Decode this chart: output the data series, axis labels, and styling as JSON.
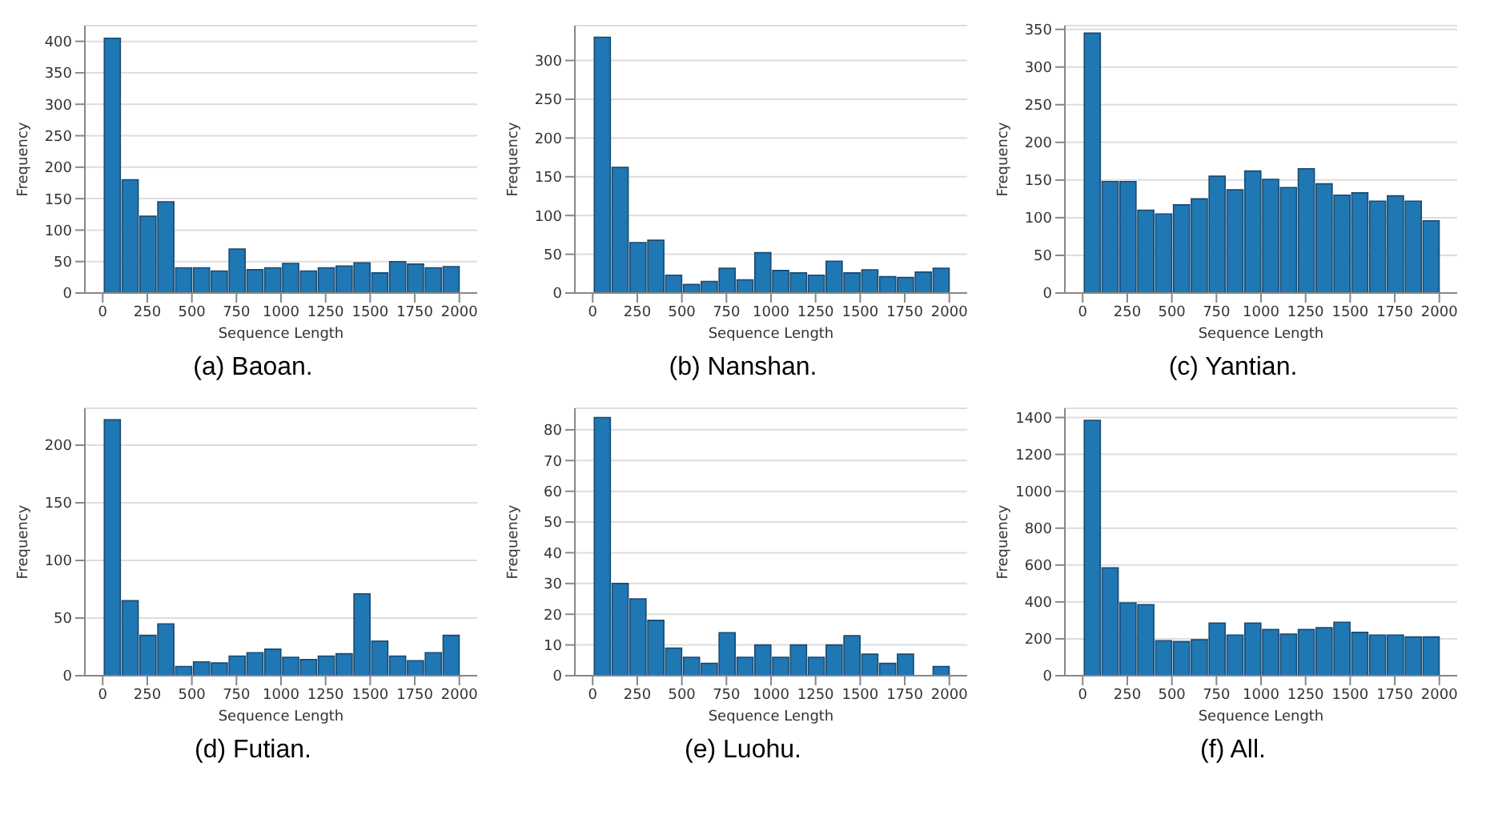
{
  "chart_data": [
    {
      "type": "histogram",
      "title": "(a) Baoan.",
      "xlabel": "Sequence Length",
      "ylabel": "Frequency",
      "color": "#1f77b4",
      "grid": "y",
      "bins": [
        0,
        100,
        200,
        300,
        400,
        500,
        600,
        700,
        800,
        900,
        1000,
        1100,
        1200,
        1300,
        1400,
        1500,
        1600,
        1700,
        1800,
        1900,
        2000
      ],
      "values": [
        405,
        180,
        122,
        145,
        40,
        40,
        35,
        70,
        37,
        40,
        47,
        35,
        40,
        43,
        48,
        32,
        50,
        46,
        40,
        42
      ],
      "xlim": [
        -100,
        2100
      ],
      "xticks": [
        0,
        250,
        500,
        750,
        1000,
        1250,
        1500,
        1750,
        2000
      ],
      "ylim": [
        0,
        425
      ],
      "yticks": [
        0,
        50,
        100,
        150,
        200,
        250,
        300,
        350,
        400
      ]
    },
    {
      "type": "histogram",
      "title": "(b) Nanshan.",
      "xlabel": "Sequence Length",
      "ylabel": "Frequency",
      "color": "#1f77b4",
      "grid": "y",
      "bins": [
        0,
        100,
        200,
        300,
        400,
        500,
        600,
        700,
        800,
        900,
        1000,
        1100,
        1200,
        1300,
        1400,
        1500,
        1600,
        1700,
        1800,
        1900,
        2000
      ],
      "values": [
        330,
        162,
        65,
        68,
        23,
        11,
        15,
        32,
        17,
        52,
        29,
        26,
        23,
        41,
        26,
        30,
        21,
        20,
        27,
        32
      ],
      "xlim": [
        -100,
        2100
      ],
      "xticks": [
        0,
        250,
        500,
        750,
        1000,
        1250,
        1500,
        1750,
        2000
      ],
      "ylim": [
        0,
        345
      ],
      "yticks": [
        0,
        50,
        100,
        150,
        200,
        250,
        300
      ]
    },
    {
      "type": "histogram",
      "title": "(c) Yantian.",
      "xlabel": "Sequence Length",
      "ylabel": "Frequency",
      "color": "#1f77b4",
      "grid": "y",
      "bins": [
        0,
        100,
        200,
        300,
        400,
        500,
        600,
        700,
        800,
        900,
        1000,
        1100,
        1200,
        1300,
        1400,
        1500,
        1600,
        1700,
        1800,
        1900,
        2000
      ],
      "values": [
        345,
        148,
        148,
        110,
        105,
        117,
        125,
        155,
        137,
        162,
        151,
        140,
        165,
        145,
        130,
        133,
        122,
        129,
        122,
        96
      ],
      "xlim": [
        -100,
        2100
      ],
      "xticks": [
        0,
        250,
        500,
        750,
        1000,
        1250,
        1500,
        1750,
        2000
      ],
      "ylim": [
        0,
        355
      ],
      "yticks": [
        0,
        50,
        100,
        150,
        200,
        250,
        300,
        350
      ]
    },
    {
      "type": "histogram",
      "title": "(d) Futian.",
      "xlabel": "Sequence Length",
      "ylabel": "Frequency",
      "color": "#1f77b4",
      "grid": "y",
      "bins": [
        0,
        100,
        200,
        300,
        400,
        500,
        600,
        700,
        800,
        900,
        1000,
        1100,
        1200,
        1300,
        1400,
        1500,
        1600,
        1700,
        1800,
        1900,
        2000
      ],
      "values": [
        222,
        65,
        35,
        45,
        8,
        12,
        11,
        17,
        20,
        23,
        16,
        14,
        17,
        19,
        71,
        30,
        17,
        13,
        20,
        35
      ],
      "xlim": [
        -100,
        2100
      ],
      "xticks": [
        0,
        250,
        500,
        750,
        1000,
        1250,
        1500,
        1750,
        2000
      ],
      "ylim": [
        0,
        232
      ],
      "yticks": [
        0,
        50,
        100,
        150,
        200
      ]
    },
    {
      "type": "histogram",
      "title": "(e) Luohu.",
      "xlabel": "Sequence Length",
      "ylabel": "Frequency",
      "color": "#1f77b4",
      "grid": "y",
      "bins": [
        0,
        100,
        200,
        300,
        400,
        500,
        600,
        700,
        800,
        900,
        1000,
        1100,
        1200,
        1300,
        1400,
        1500,
        1600,
        1700,
        1800,
        1900,
        2000
      ],
      "values": [
        84,
        30,
        25,
        18,
        9,
        6,
        4,
        14,
        6,
        10,
        6,
        10,
        6,
        10,
        13,
        7,
        4,
        7,
        0,
        3
      ],
      "xlim": [
        -100,
        2100
      ],
      "xticks": [
        0,
        250,
        500,
        750,
        1000,
        1250,
        1500,
        1750,
        2000
      ],
      "ylim": [
        0,
        87
      ],
      "yticks": [
        0,
        10,
        20,
        30,
        40,
        50,
        60,
        70,
        80
      ]
    },
    {
      "type": "histogram",
      "title": "(f) All.",
      "xlabel": "Sequence Length",
      "ylabel": "Frequency",
      "color": "#1f77b4",
      "grid": "y",
      "bins": [
        0,
        100,
        200,
        300,
        400,
        500,
        600,
        700,
        800,
        900,
        1000,
        1100,
        1200,
        1300,
        1400,
        1500,
        1600,
        1700,
        1800,
        1900,
        2000
      ],
      "values": [
        1385,
        585,
        395,
        385,
        190,
        185,
        195,
        285,
        220,
        285,
        250,
        225,
        250,
        260,
        290,
        235,
        220,
        220,
        210,
        210
      ],
      "xlim": [
        -100,
        2100
      ],
      "xticks": [
        0,
        250,
        500,
        750,
        1000,
        1250,
        1500,
        1750,
        2000
      ],
      "ylim": [
        0,
        1450
      ],
      "yticks": [
        0,
        200,
        400,
        600,
        800,
        1000,
        1200,
        1400
      ]
    }
  ]
}
